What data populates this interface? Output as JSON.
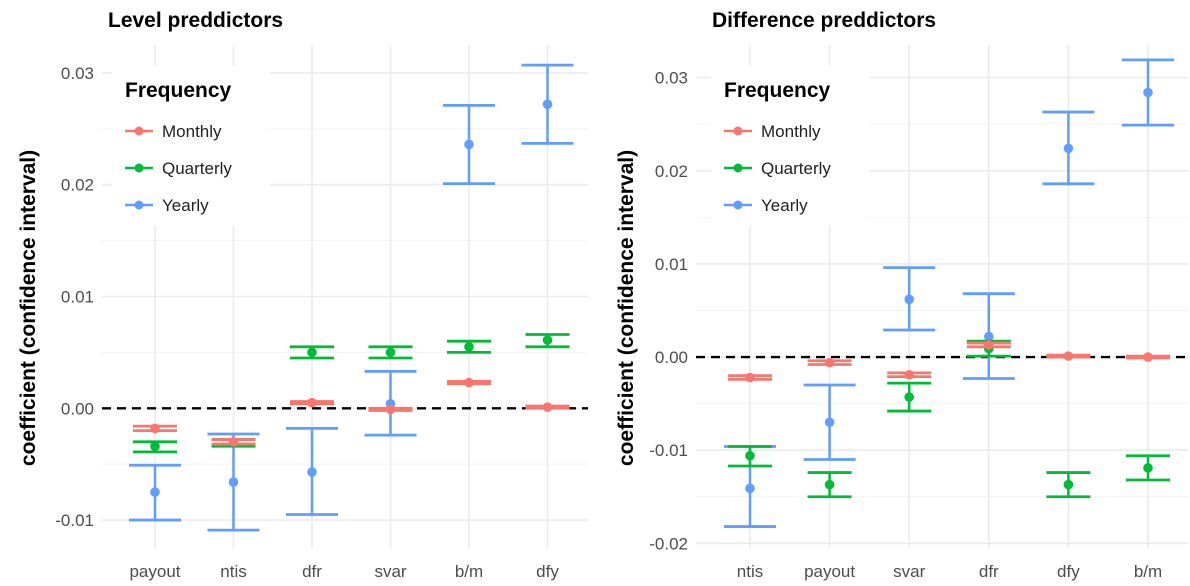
{
  "series_colors": {
    "Monthly": "#f8766d",
    "Quarterly": "#00ba38",
    "Yearly": "#619cff"
  },
  "chart_data": [
    {
      "type": "errorbar",
      "title": "Level preddictors",
      "xlabel": "",
      "ylabel": "coefficient (confidence interval)",
      "categories": [
        "payout",
        "ntis",
        "dfr",
        "svar",
        "b/m",
        "dfy"
      ],
      "ylim": [
        -0.0125,
        0.0325
      ],
      "yticks": [
        -0.01,
        0.0,
        0.01,
        0.02,
        0.03
      ],
      "ytick_labels": [
        "-0.01",
        "0.00",
        "0.01",
        "0.02",
        "0.03"
      ],
      "reference_line": 0,
      "grid": true,
      "legend": {
        "title": "Frequency",
        "position": "top-left",
        "entries": [
          "Monthly",
          "Quarterly",
          "Yearly"
        ]
      },
      "series": [
        {
          "name": "Monthly",
          "values": [
            -0.0018,
            -0.003,
            0.0005,
            -0.0001,
            0.0023,
            0.0001
          ],
          "lower": [
            -0.002,
            -0.0032,
            0.0004,
            -0.0002,
            0.0022,
            0.0
          ],
          "upper": [
            -0.0016,
            -0.0028,
            0.0006,
            0.0,
            0.0024,
            0.0002
          ]
        },
        {
          "name": "Quarterly",
          "values": [
            -0.0034,
            -0.0031,
            0.005,
            0.005,
            0.0055,
            0.0061
          ],
          "lower": [
            -0.0039,
            -0.0034,
            0.0045,
            0.0045,
            0.005,
            0.0055
          ],
          "upper": [
            -0.003,
            -0.0028,
            0.0055,
            0.0055,
            0.006,
            0.0066
          ]
        },
        {
          "name": "Yearly",
          "values": [
            -0.0075,
            -0.0066,
            -0.0057,
            0.0004,
            0.0236,
            0.0272
          ],
          "lower": [
            -0.01,
            -0.0109,
            -0.0095,
            -0.0024,
            0.0201,
            0.0237
          ],
          "upper": [
            -0.0051,
            -0.0023,
            -0.0018,
            0.0033,
            0.0271,
            0.0307
          ]
        }
      ]
    },
    {
      "type": "errorbar",
      "title": "Difference preddictors",
      "xlabel": "",
      "ylabel": "coefficient (confidence interval)",
      "categories": [
        "ntis",
        "payout",
        "svar",
        "dfr",
        "dfy",
        "b/m"
      ],
      "ylim": [
        -0.0205,
        0.0335
      ],
      "yticks": [
        -0.02,
        -0.01,
        0.0,
        0.01,
        0.02,
        0.03
      ],
      "ytick_labels": [
        "-0.02",
        "-0.01",
        "0.00",
        "0.01",
        "0.02",
        "0.03"
      ],
      "reference_line": 0,
      "grid": true,
      "legend": {
        "title": "Frequency",
        "position": "top-left",
        "entries": [
          "Monthly",
          "Quarterly",
          "Yearly"
        ]
      },
      "series": [
        {
          "name": "Monthly",
          "values": [
            -0.0022,
            -0.0006,
            -0.0019,
            0.0013,
            0.0001,
            0.0
          ],
          "lower": [
            -0.0024,
            -0.0008,
            -0.0021,
            0.0011,
            0.0,
            -0.0001
          ],
          "upper": [
            -0.002,
            -0.0004,
            -0.0017,
            0.0015,
            0.0002,
            0.0001
          ]
        },
        {
          "name": "Quarterly",
          "values": [
            -0.0106,
            -0.0137,
            -0.0043,
            0.0009,
            -0.0137,
            -0.0119
          ],
          "lower": [
            -0.0117,
            -0.015,
            -0.0058,
            0.0001,
            -0.015,
            -0.0132
          ],
          "upper": [
            -0.0096,
            -0.0124,
            -0.0028,
            0.0017,
            -0.0124,
            -0.0106
          ]
        },
        {
          "name": "Yearly",
          "values": [
            -0.0141,
            -0.007,
            0.0062,
            0.0022,
            0.0224,
            0.0284
          ],
          "lower": [
            -0.0182,
            -0.011,
            0.0029,
            -0.0023,
            0.0186,
            0.0249
          ],
          "upper": [
            -0.0096,
            -0.003,
            0.0096,
            0.0068,
            0.0263,
            0.0319
          ]
        }
      ]
    }
  ]
}
